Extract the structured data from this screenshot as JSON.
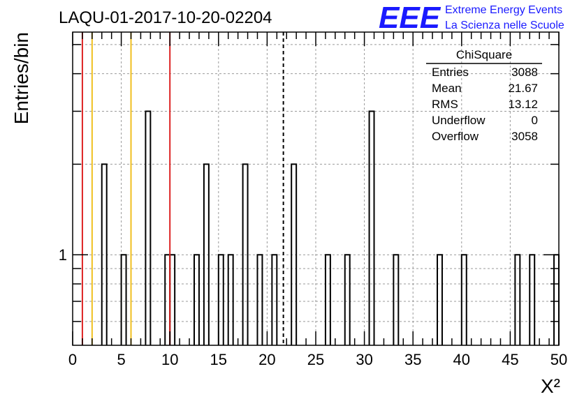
{
  "header": {
    "title": "LAQU-01-2017-10-20-02204",
    "logo_text": "EEE",
    "org_line1": "Extreme Energy Events",
    "org_line2": "La Scienza nelle Scuole"
  },
  "stats_box": {
    "title": "ChiSquare",
    "rows": [
      {
        "label": "Entries",
        "value": "3088"
      },
      {
        "label": "Mean",
        "value": "21.67"
      },
      {
        "label": "RMS",
        "value": "13.12"
      },
      {
        "label": "Underflow",
        "value": "0"
      },
      {
        "label": "Overflow",
        "value": "3058"
      }
    ]
  },
  "chart_data": {
    "type": "bar",
    "title": "LAQU-01-2017-10-20-02204",
    "xlabel": "X²",
    "ylabel": "Entries/bin",
    "xlim": [
      0,
      50
    ],
    "ylim": [
      0.5,
      5.5
    ],
    "yscale": "log",
    "bin_width": 0.5,
    "grid": true,
    "x_ticks": [
      0,
      5,
      10,
      15,
      20,
      25,
      30,
      35,
      40,
      45,
      50
    ],
    "y_tick_labels": [
      {
        "value": 1,
        "label": "1"
      }
    ],
    "bins": [
      {
        "x": 3.0,
        "y": 2
      },
      {
        "x": 5.0,
        "y": 1
      },
      {
        "x": 7.5,
        "y": 3
      },
      {
        "x": 9.5,
        "y": 1
      },
      {
        "x": 10.0,
        "y": 1
      },
      {
        "x": 12.5,
        "y": 1
      },
      {
        "x": 13.5,
        "y": 2
      },
      {
        "x": 15.0,
        "y": 1
      },
      {
        "x": 16.0,
        "y": 1
      },
      {
        "x": 17.5,
        "y": 2
      },
      {
        "x": 19.0,
        "y": 1
      },
      {
        "x": 20.5,
        "y": 1
      },
      {
        "x": 22.5,
        "y": 2
      },
      {
        "x": 26.0,
        "y": 1
      },
      {
        "x": 28.0,
        "y": 1
      },
      {
        "x": 30.5,
        "y": 3
      },
      {
        "x": 33.0,
        "y": 1
      },
      {
        "x": 37.5,
        "y": 1
      },
      {
        "x": 40.0,
        "y": 1
      },
      {
        "x": 45.5,
        "y": 1
      },
      {
        "x": 47.0,
        "y": 1
      },
      {
        "x": 49.5,
        "y": 1
      }
    ],
    "vertical_lines": [
      {
        "x": 1.0,
        "color": "#dd2222",
        "style": "solid"
      },
      {
        "x": 2.0,
        "color": "#f0c020",
        "style": "solid"
      },
      {
        "x": 6.0,
        "color": "#f0c020",
        "style": "solid"
      },
      {
        "x": 10.0,
        "color": "#dd2222",
        "style": "solid"
      },
      {
        "x": 21.67,
        "color": "#000000",
        "style": "dashed"
      }
    ]
  }
}
